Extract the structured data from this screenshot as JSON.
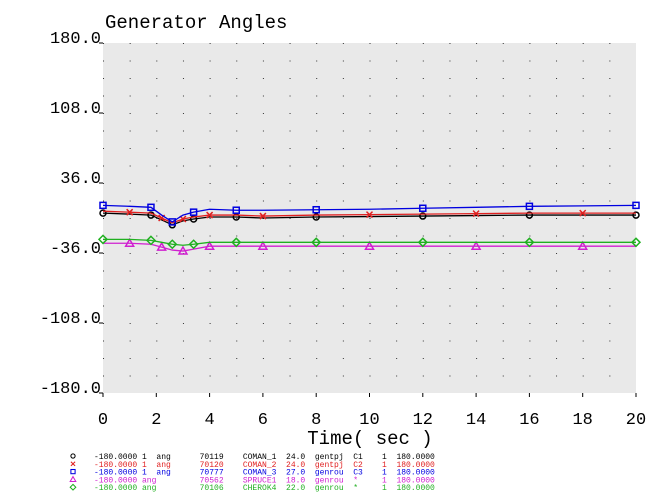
{
  "chart_data": {
    "type": "line",
    "title": "Generator Angles",
    "x_label": "Time( sec )",
    "x": [
      0,
      1,
      1.8,
      2.2,
      2.6,
      3.0,
      3.4,
      4,
      5,
      6,
      8,
      10,
      12,
      14,
      16,
      18,
      20
    ],
    "xlim": [
      0,
      20
    ],
    "xticks": [
      0,
      2,
      4,
      6,
      8,
      10,
      12,
      14,
      16,
      18,
      20
    ],
    "ylim": [
      -180,
      180
    ],
    "yticks": [
      {
        "value": 180,
        "label": "180.0"
      },
      {
        "value": 108,
        "label": "108.0"
      },
      {
        "value": 36,
        "label": "36.0"
      },
      {
        "value": -36,
        "label": "-36.0"
      },
      {
        "value": -108,
        "label": "-108.0"
      },
      {
        "value": -180,
        "label": "-180.0"
      }
    ],
    "grid": true,
    "series": [
      {
        "name": "COMAN_1",
        "color": "#000000",
        "marker": "circle",
        "values": [
          5,
          4,
          3,
          -2,
          -7,
          -3,
          -1,
          1,
          1,
          0,
          1,
          1.5,
          2,
          2.5,
          3,
          3,
          3
        ]
      },
      {
        "name": "COMAN_2",
        "color": "#e02020",
        "marker": "x",
        "values": [
          7,
          6,
          5,
          0,
          -5,
          -1,
          1,
          3,
          3,
          2,
          3,
          3.5,
          4,
          4.5,
          5,
          5,
          5
        ]
      },
      {
        "name": "COMAN_3",
        "color": "#0000e0",
        "marker": "square",
        "values": [
          13,
          12,
          11,
          3,
          -4,
          3,
          6,
          9,
          8,
          8,
          8.5,
          9,
          10,
          11,
          12,
          12.5,
          13
        ]
      },
      {
        "name": "SPRUCE1",
        "color": "#d020d0",
        "marker": "triangle",
        "values": [
          -26,
          -26,
          -27,
          -30,
          -33,
          -34,
          -32,
          -29,
          -29,
          -29,
          -29,
          -29,
          -29,
          -29,
          -29,
          -29,
          -29
        ]
      },
      {
        "name": "CHEROK4",
        "color": "#20b020",
        "marker": "diamond",
        "values": [
          -22,
          -22,
          -23,
          -25,
          -27,
          -28,
          -27,
          -25,
          -25,
          -25,
          -25,
          -25,
          -25,
          -25,
          -25,
          -25,
          -25
        ]
      }
    ],
    "legend_rows": [
      "-180.0000 1  ang      70119    COMAN_1  24.0  gentpj  C1    1  180.0000",
      "-180.0000 1  ang      70120    COMAN_2  24.0  gentpj  C2    1  180.0000",
      "-180.0000 1  ang      70777    COMAN_3  27.0  genrou  C3    1  180.0000",
      "-180.0000 ang         70562    SPRUCE1  18.0  genrou  *     1  180.0000",
      "-180.0000 ang         70106    CHEROK4  22.0  genrou  *     1  180.0000"
    ]
  }
}
